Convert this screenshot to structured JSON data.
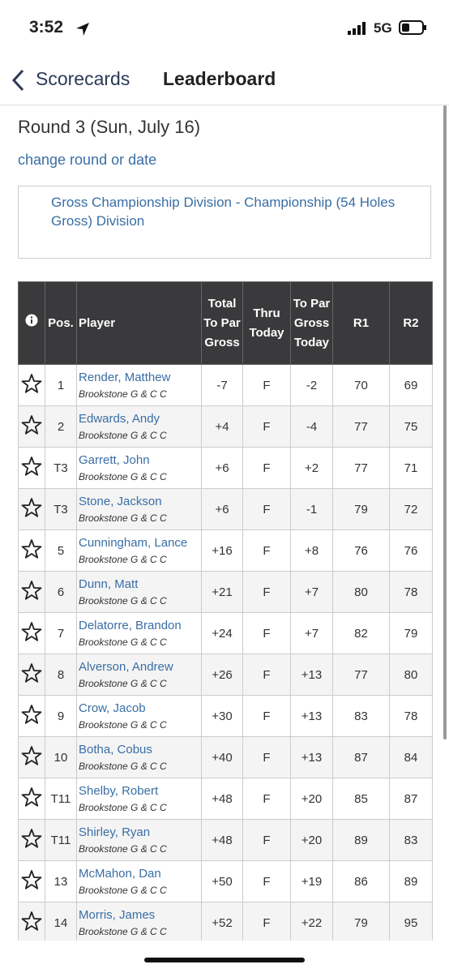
{
  "status_bar": {
    "time": "3:52",
    "network": "5G"
  },
  "nav": {
    "back": "Scorecards",
    "title": "Leaderboard"
  },
  "round": {
    "title": "Round 3 (Sun, July 16)",
    "change_link": "change round or date"
  },
  "division": "Gross Championship Division - Championship (54 Holes Gross) Division",
  "table": {
    "headers": [
      "Pos.",
      "Player",
      "Total To Par Gross",
      "Thru Today",
      "To Par Gross Today",
      "R1",
      "R2"
    ],
    "rows": [
      [
        "1",
        "Render, Matthew",
        "Brookstone G & C C",
        "-7",
        "F",
        "-2",
        "70",
        "69"
      ],
      [
        "2",
        "Edwards, Andy",
        "Brookstone G & C C",
        "+4",
        "F",
        "-4",
        "77",
        "75"
      ],
      [
        "T3",
        "Garrett, John",
        "Brookstone G & C C",
        "+6",
        "F",
        "+2",
        "77",
        "71"
      ],
      [
        "T3",
        "Stone, Jackson",
        "Brookstone G & C C",
        "+6",
        "F",
        "-1",
        "79",
        "72"
      ],
      [
        "5",
        "Cunningham, Lance",
        "Brookstone G & C C",
        "+16",
        "F",
        "+8",
        "76",
        "76"
      ],
      [
        "6",
        "Dunn, Matt",
        "Brookstone G & C C",
        "+21",
        "F",
        "+7",
        "80",
        "78"
      ],
      [
        "7",
        "Delatorre, Brandon",
        "Brookstone G & C C",
        "+24",
        "F",
        "+7",
        "82",
        "79"
      ],
      [
        "8",
        "Alverson, Andrew",
        "Brookstone G & C C",
        "+26",
        "F",
        "+13",
        "77",
        "80"
      ],
      [
        "9",
        "Crow, Jacob",
        "Brookstone G & C C",
        "+30",
        "F",
        "+13",
        "83",
        "78"
      ],
      [
        "10",
        "Botha, Cobus",
        "Brookstone G & C C",
        "+40",
        "F",
        "+13",
        "87",
        "84"
      ],
      [
        "T11",
        "Shelby, Robert",
        "Brookstone G & C C",
        "+48",
        "F",
        "+20",
        "85",
        "87"
      ],
      [
        "T11",
        "Shirley, Ryan",
        "Brookstone G & C C",
        "+48",
        "F",
        "+20",
        "89",
        "83"
      ],
      [
        "13",
        "McMahon, Dan",
        "Brookstone G & C C",
        "+50",
        "F",
        "+19",
        "86",
        "89"
      ],
      [
        "14",
        "Morris, James",
        "Brookstone G & C C",
        "+52",
        "F",
        "+22",
        "79",
        "95"
      ]
    ]
  }
}
